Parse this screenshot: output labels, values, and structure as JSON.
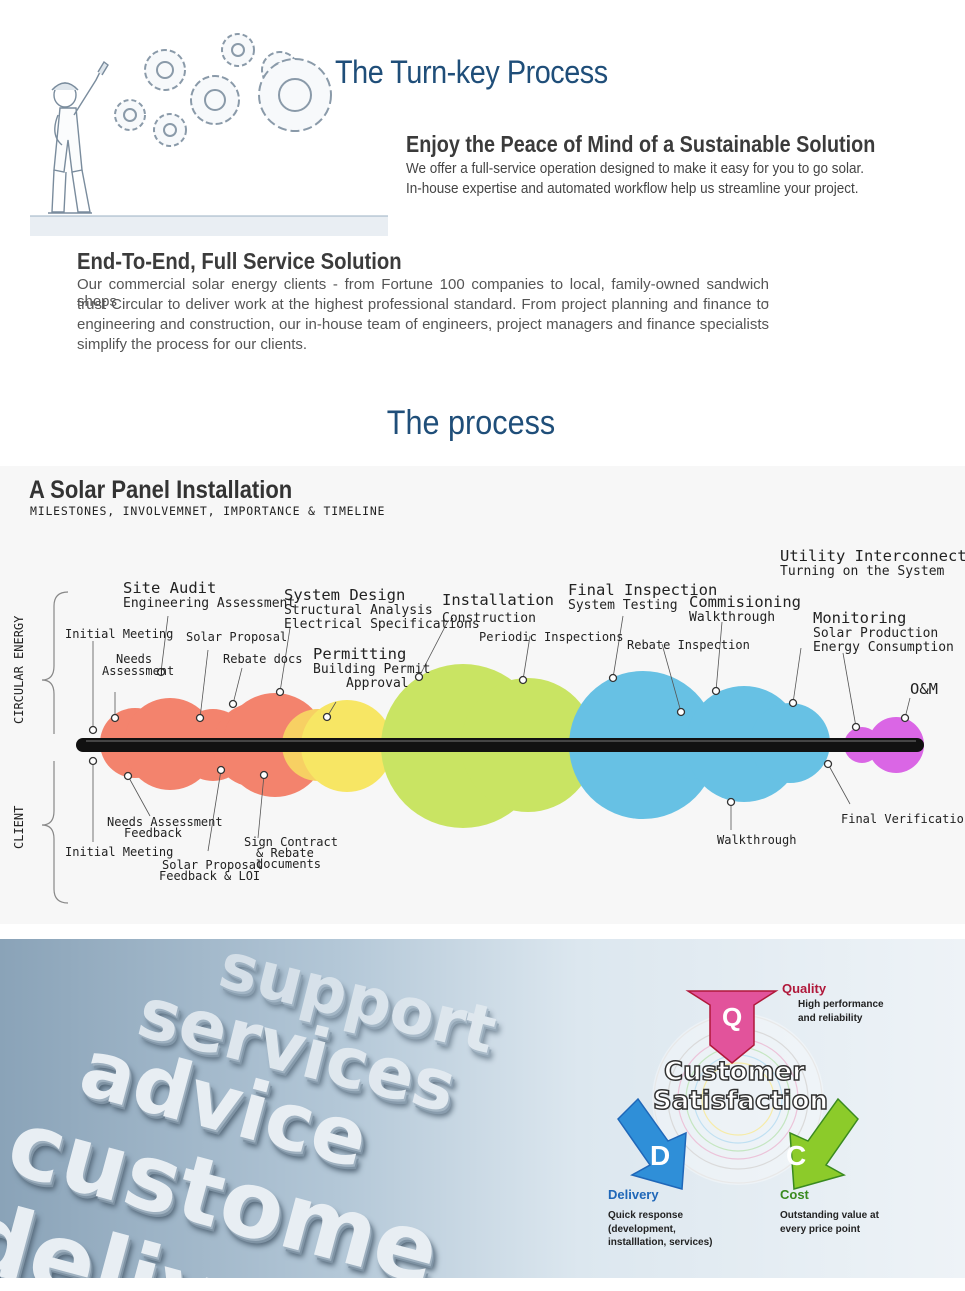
{
  "hero": {
    "title": "The Turn-key Process",
    "illustration_icon": "engineer-with-gears-sketch",
    "peace_heading": "Enjoy the Peace of Mind of a Sustainable Solution",
    "peace_lines": [
      "We offer a full-service operation designed to make it easy for you to go solar.",
      "In-house expertise and automated workflow help us streamline your project."
    ]
  },
  "e2e": {
    "heading": "End-To-End, Full Service Solution",
    "lines": [
      "Our commercial solar energy clients - from Fortune 100 companies to local, family-owned sandwich shops -",
      "trust Circular to deliver work at the highest professional standard. From project planning and finance to",
      "engineering and construction, our in-house team of engineers, project managers and finance specialists",
      "simplify the process for our clients."
    ]
  },
  "process_title": "The process",
  "timeline": {
    "title": "A Solar Panel Installation",
    "subtitle": "MILESTONES, INVOLVEMNET, IMPORTANCE & TIMELINE",
    "side_top": "CIRCULAR ENERGY",
    "side_bottom": "CLIENT",
    "colors": {
      "red": "#f26347",
      "yellow": "#f8e23c",
      "green": "#bddf3a",
      "blue": "#3fb3df",
      "magenta": "#d23ee0"
    },
    "labels_top": {
      "initial_meeting": "Initial Meeting",
      "needs_assessment_1": "Needs",
      "needs_assessment_2": "Assessment",
      "site_audit": "Site Audit",
      "site_audit_sub": "Engineering Assessment",
      "solar_proposal": "Solar Proposal",
      "rebate_docs": "Rebate docs",
      "system_design": "System Design",
      "system_design_sub1": "Structural Analysis",
      "system_design_sub2": "Electrical Specifications",
      "permitting": "Permitting",
      "permitting_sub1": "Building Permit",
      "permitting_sub2": "Approval",
      "installation": "Installation",
      "installation_sub": "Construction",
      "periodic_inspections": "Periodic Inspections",
      "final_inspection": "Final Inspection",
      "final_inspection_sub": "System Testing",
      "rebate_inspection": "Rebate Inspection",
      "commisioning": "Commisioning",
      "commisioning_sub": "Walkthrough",
      "utility": "Utility Interconnection",
      "utility_sub": "Turning on the System",
      "monitoring": "Monitoring",
      "monitoring_sub1": "Solar Production",
      "monitoring_sub2": "Energy Consumption",
      "om": "O&M"
    },
    "labels_bottom": {
      "initial_meeting": "Initial Meeting",
      "needs_feedback_1": "Needs Assessment",
      "needs_feedback_2": "Feedback",
      "proposal_feedback_1": "Solar Proposal",
      "proposal_feedback_2": "Feedback & LOI",
      "sign_contract_1": "Sign Contract",
      "sign_contract_2": "& Rebate",
      "sign_contract_3": "documents",
      "walkthrough": "Walkthrough",
      "final_verification": "Final Verification"
    }
  },
  "banner": {
    "bg_words": [
      "support",
      "services",
      "advice",
      "custome",
      "deliv"
    ],
    "center_line1": "Customer",
    "center_line2": "Satisfaction",
    "quality": {
      "letter": "Q",
      "title": "Quality",
      "desc1": "High performance",
      "desc2": "and reliability",
      "color": "#b0183a"
    },
    "delivery": {
      "letter": "D",
      "title": "Delivery",
      "desc1": "Quick response",
      "desc2": "(development,",
      "desc3": "installlation, services)",
      "color": "#1f67b8"
    },
    "cost": {
      "letter": "C",
      "title": "Cost",
      "desc1": "Outstanding value at",
      "desc2": "every price point",
      "color": "#3a8a1f"
    }
  }
}
